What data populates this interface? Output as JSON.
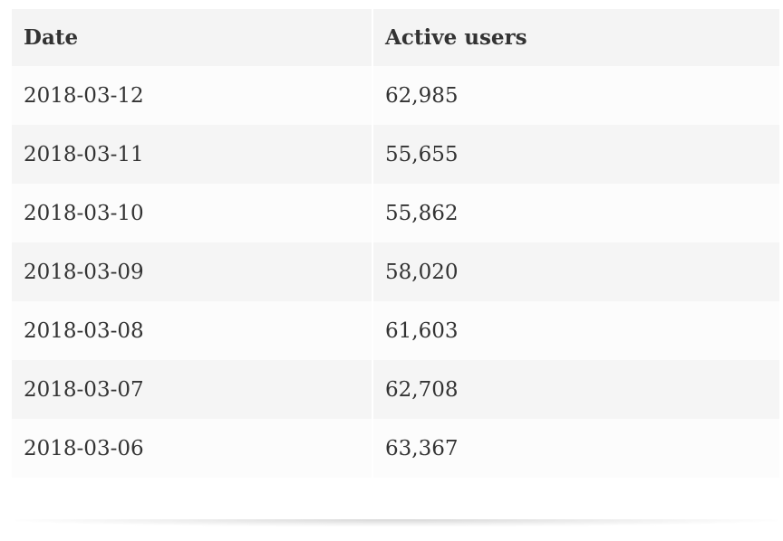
{
  "table": {
    "headers": [
      "Date",
      "Active users"
    ],
    "rows": [
      [
        "2018-03-12",
        "62,985"
      ],
      [
        "2018-03-11",
        "55,655"
      ],
      [
        "2018-03-10",
        "55,862"
      ],
      [
        "2018-03-09",
        "58,020"
      ],
      [
        "2018-03-08",
        "61,603"
      ],
      [
        "2018-03-07",
        "62,708"
      ],
      [
        "2018-03-06",
        "63,367"
      ]
    ]
  }
}
